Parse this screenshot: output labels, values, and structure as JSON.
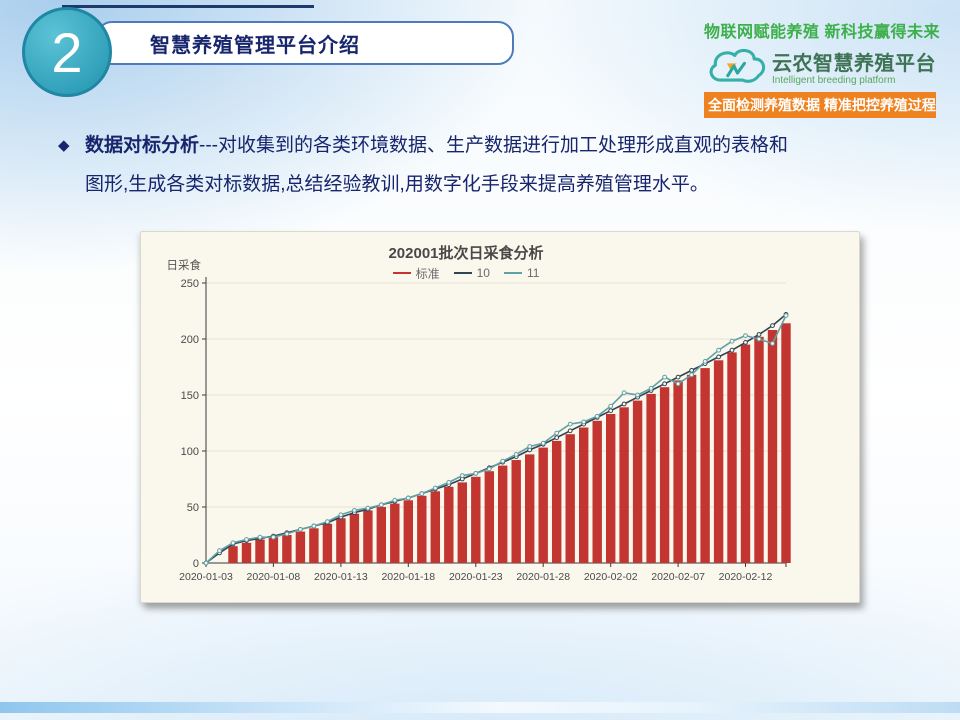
{
  "slide": {
    "badge_number": "2",
    "section_title": "智慧养殖管理平台介绍",
    "header_right": {
      "slogan": "物联网赋能养殖 新科技赢得未来",
      "brand_name": "云农智慧养殖平台",
      "brand_subtitle": "Intelligent breeding platform",
      "banner": "全面检测养殖数据 精准把控养殖过程"
    },
    "bullet": {
      "marker": "◆",
      "lead": "数据对标分析",
      "line1_rest": "---对收集到的各类环境数据、生产数据进行加工处理形成直观的表格和",
      "line2": "图形,生成各类对标数据,总结经验教训,用数字化手段来提高养殖管理水平。"
    }
  },
  "colors": {
    "accent_navy": "#17256d",
    "badge_teal": "#35a7bf",
    "pill_border": "#4f79bd",
    "slogan_green": "#3db04b",
    "brand_green": "#3f7355",
    "banner_orange": "#ef8220",
    "bar_red": "#c23531",
    "line_dark": "#2f4554",
    "line_teal": "#61a0a8",
    "chart_bg": "#faf7ec",
    "footer_blue": "#8fc6ee"
  },
  "chart_data": {
    "type": "bar",
    "title": "202001批次日采食分析",
    "ylabel": "日采食",
    "xlabel": "",
    "ylim": [
      0,
      250
    ],
    "yticks": [
      0,
      50,
      100,
      150,
      200,
      250
    ],
    "grid": true,
    "legend_position": "top",
    "x_tick_every": 5,
    "background": "#faf7ec",
    "dates": [
      "2020-01-03",
      "2020-01-04",
      "2020-01-05",
      "2020-01-06",
      "2020-01-07",
      "2020-01-08",
      "2020-01-09",
      "2020-01-10",
      "2020-01-11",
      "2020-01-12",
      "2020-01-13",
      "2020-01-14",
      "2020-01-15",
      "2020-01-16",
      "2020-01-17",
      "2020-01-18",
      "2020-01-19",
      "2020-01-20",
      "2020-01-21",
      "2020-01-22",
      "2020-01-23",
      "2020-01-24",
      "2020-01-25",
      "2020-01-26",
      "2020-01-27",
      "2020-01-28",
      "2020-01-29",
      "2020-01-30",
      "2020-01-31",
      "2020-02-01",
      "2020-02-02",
      "2020-02-03",
      "2020-02-04",
      "2020-02-05",
      "2020-02-06",
      "2020-02-07",
      "2020-02-08",
      "2020-02-09",
      "2020-02-10",
      "2020-02-11",
      "2020-02-12",
      "2020-02-13",
      "2020-02-14",
      "2020-02-15"
    ],
    "series": [
      {
        "name": "标准",
        "type": "bar",
        "color": "#c23531",
        "values": [
          null,
          null,
          15,
          18,
          21,
          23,
          25,
          28,
          31,
          35,
          40,
          44,
          47,
          50,
          53,
          56,
          60,
          64,
          68,
          72,
          77,
          82,
          87,
          92,
          97,
          103,
          109,
          115,
          121,
          127,
          133,
          139,
          145,
          151,
          157,
          163,
          168,
          174,
          181,
          188,
          195,
          202,
          208,
          214
        ]
      },
      {
        "name": "10",
        "type": "line",
        "color": "#2f4554",
        "values": [
          0,
          9,
          17,
          20,
          22,
          24,
          27,
          30,
          33,
          36,
          41,
          45,
          48,
          52,
          55,
          58,
          62,
          66,
          70,
          75,
          80,
          85,
          90,
          95,
          101,
          106,
          112,
          118,
          124,
          130,
          136,
          142,
          148,
          154,
          160,
          166,
          172,
          178,
          184,
          190,
          197,
          204,
          212,
          222
        ]
      },
      {
        "name": "11",
        "type": "line",
        "color": "#61a0a8",
        "values": [
          0,
          11,
          18,
          21,
          23,
          23,
          26,
          30,
          33,
          37,
          43,
          47,
          49,
          52,
          56,
          58,
          62,
          67,
          72,
          78,
          80,
          84,
          91,
          97,
          104,
          107,
          116,
          124,
          126,
          131,
          140,
          152,
          150,
          156,
          166,
          160,
          168,
          180,
          190,
          198,
          203,
          200,
          196,
          221
        ]
      }
    ]
  }
}
